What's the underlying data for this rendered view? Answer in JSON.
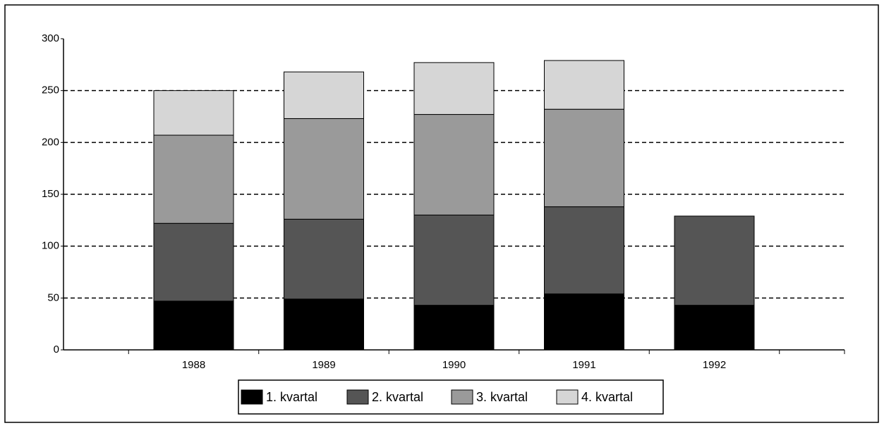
{
  "chart_data": {
    "type": "stacked_bar",
    "categories": [
      "1988",
      "1989",
      "1990",
      "1991",
      "1992"
    ],
    "series": [
      {
        "name": "1. kvartal",
        "color": "#000000",
        "values": [
          47,
          49,
          43,
          54,
          43
        ]
      },
      {
        "name": "2. kvartal",
        "color": "#555555",
        "values": [
          75,
          77,
          87,
          84,
          86
        ]
      },
      {
        "name": "3. kvartal",
        "color": "#9a9a9a",
        "values": [
          85,
          97,
          97,
          94,
          null
        ]
      },
      {
        "name": "4. kvartal",
        "color": "#d6d6d6",
        "values": [
          43,
          45,
          50,
          47,
          null
        ]
      }
    ],
    "ylim": [
      0,
      300
    ],
    "yticks": [
      0,
      50,
      100,
      150,
      200,
      250,
      300
    ],
    "grid": true
  }
}
